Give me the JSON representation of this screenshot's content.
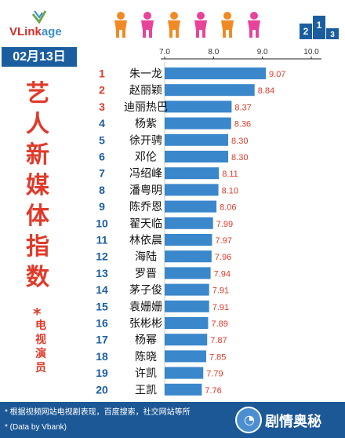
{
  "brand": {
    "part1": "VLink",
    "part2": "age"
  },
  "date": "02月13日",
  "title_chars": [
    "艺",
    "人",
    "新",
    "媒",
    "体",
    "指",
    "数"
  ],
  "subtitle_star": "*",
  "subtitle_chars": [
    "电",
    "视",
    "演",
    "员"
  ],
  "colors": {
    "bar": "#3a87cb",
    "rank": "#e03a2a",
    "rank_other": "#1b5ea0",
    "value_label": "#e03a2a",
    "footer": "#1d5896",
    "title": "#e03a2a"
  },
  "icons": [
    "people-row-icon",
    "podium-icon",
    "logo-icon",
    "watermark-icon"
  ],
  "footer": {
    "line1": "* 根据视频网站电视剧表现，百度搜索，社交网站等所",
    "line2": "* (Data by Vbank)"
  },
  "watermark": "剧情奥秘",
  "chart_data": {
    "type": "bar",
    "orientation": "horizontal",
    "x_ticks": [
      "7.0",
      "8.0",
      "9.0",
      "10.0"
    ],
    "xlim": [
      7.0,
      10.0
    ],
    "grid": false,
    "categories": [
      "朱一龙",
      "赵丽颖",
      "迪丽热巴",
      "杨紫",
      "徐开骋",
      "邓伦",
      "冯绍峰",
      "潘粤明",
      "陈乔恩",
      "翟天临",
      "林依晨",
      "海陆",
      "罗晋",
      "茅子俊",
      "袁姗姗",
      "张彬彬",
      "杨幂",
      "陈晓",
      "许凯",
      "王凯"
    ],
    "ranks": [
      "1",
      "2",
      "3",
      "4",
      "5",
      "6",
      "7",
      "8",
      "9",
      "10",
      "11",
      "12",
      "13",
      "14",
      "15",
      "16",
      "17",
      "18",
      "19",
      "20"
    ],
    "values": [
      9.07,
      8.84,
      8.37,
      8.36,
      8.3,
      8.3,
      8.11,
      8.1,
      8.06,
      7.99,
      7.97,
      7.96,
      7.94,
      7.91,
      7.91,
      7.89,
      7.87,
      7.85,
      7.79,
      7.76
    ],
    "value_labels": [
      "9.07",
      "8.84",
      "8.37",
      "8.36",
      "8.30",
      "8.30",
      "8.11",
      "8.10",
      "8.06",
      "7.99",
      "7.97",
      "7.96",
      "7.94",
      "7.91",
      "7.91",
      "7.89",
      "7.87",
      "7.85",
      "7.79",
      "7.76"
    ]
  }
}
